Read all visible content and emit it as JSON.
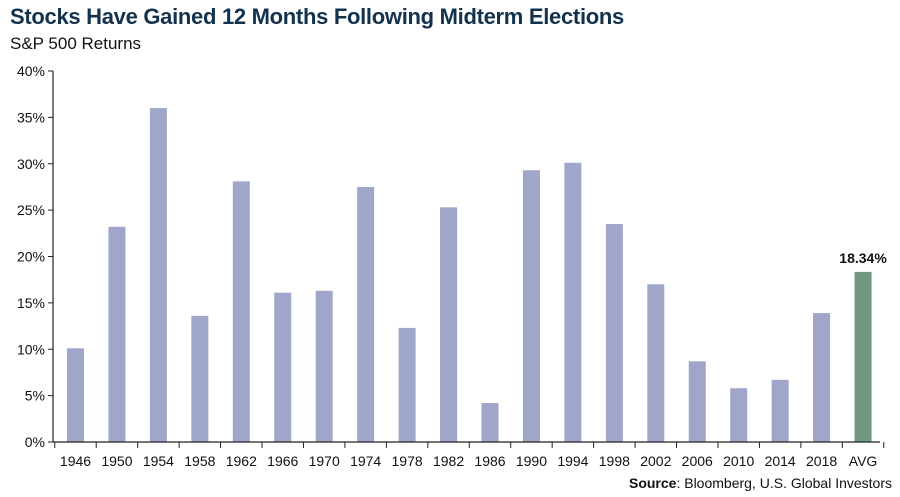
{
  "chart_data": {
    "type": "bar",
    "title": "Stocks Have Gained 12 Months Following Midterm Elections",
    "subtitle": "S&P 500 Returns",
    "categories": [
      "1946",
      "1950",
      "1954",
      "1958",
      "1962",
      "1966",
      "1970",
      "1974",
      "1978",
      "1982",
      "1986",
      "1990",
      "1994",
      "1998",
      "2002",
      "2006",
      "2010",
      "2014",
      "2018",
      "AVG"
    ],
    "values": [
      10.1,
      23.2,
      36.0,
      13.6,
      28.1,
      16.1,
      16.3,
      27.5,
      12.3,
      25.3,
      4.2,
      29.3,
      30.1,
      23.5,
      17.0,
      8.7,
      5.8,
      6.7,
      13.9,
      18.34
    ],
    "highlight_label": "18.34%",
    "ylim": [
      0,
      40
    ],
    "yticks": [
      "0%",
      "5%",
      "10%",
      "15%",
      "20%",
      "25%",
      "30%",
      "35%",
      "40%"
    ],
    "ytick_values": [
      0,
      5,
      10,
      15,
      20,
      25,
      30,
      35,
      40
    ],
    "colors": {
      "bar": "#9fa6c9",
      "highlight": "#6f9a80",
      "axis": "#222222"
    },
    "grid": false,
    "source_label": "Source",
    "source_text": ": Bloomberg, U.S. Global Investors"
  }
}
